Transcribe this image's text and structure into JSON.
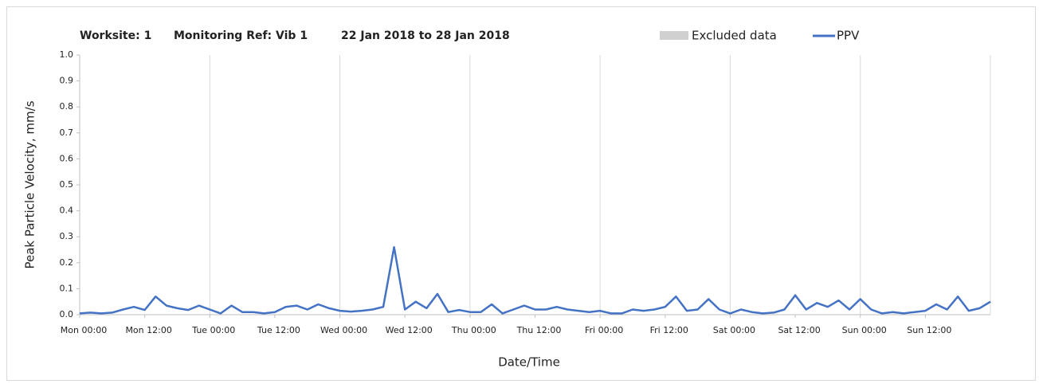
{
  "chart_data": {
    "type": "line",
    "title": [
      "Worksite: 1",
      "Monitoring Ref: Vib 1",
      "22 Jan 2018 to 28 Jan 2018"
    ],
    "xlabel": "Date/Time",
    "ylabel": "Peak Particle Velocity, mm/s",
    "legend": [
      {
        "name": "Excluded data",
        "color": "#d0d0d0"
      }
    ],
    "grid": true,
    "xlim": [
      0,
      168
    ],
    "xticks": [
      {
        "value": 0,
        "label": "Mon 00:00"
      },
      {
        "value": 12,
        "label": "Mon 12:00"
      },
      {
        "value": 24,
        "label": "Tue 00:00"
      },
      {
        "value": 36,
        "label": "Tue 12:00"
      },
      {
        "value": 48,
        "label": "Wed 00:00"
      },
      {
        "value": 60,
        "label": "Wed 12:00"
      },
      {
        "value": 72,
        "label": "Thu 00:00"
      },
      {
        "value": 84,
        "label": "Thu 12:00"
      },
      {
        "value": 96,
        "label": "Fri 00:00"
      },
      {
        "value": 108,
        "label": "Fri 12:00"
      },
      {
        "value": 120,
        "label": "Sat 00:00"
      },
      {
        "value": 132,
        "label": "Sat 12:00"
      },
      {
        "value": 144,
        "label": "Sun 00:00"
      },
      {
        "value": 156,
        "label": "Sun 12:00"
      }
    ],
    "ylim": [
      0,
      1
    ],
    "yticks": [
      {
        "value": 0,
        "label": "0.0"
      },
      0.1,
      0.2,
      0.3,
      0.4,
      0.5,
      0.6,
      0.7,
      0.8,
      0.9,
      {
        "value": 1,
        "label": "1.0"
      }
    ],
    "x": [
      0,
      2,
      4,
      6,
      8,
      10,
      12,
      14,
      16,
      18,
      20,
      22,
      24,
      26,
      28,
      30,
      32,
      34,
      36,
      38,
      40,
      42,
      44,
      46,
      48,
      50,
      52,
      54,
      56,
      58,
      60,
      62,
      64,
      66,
      68,
      70,
      72,
      74,
      76,
      78,
      80,
      82,
      84,
      86,
      88,
      90,
      92,
      94,
      96,
      98,
      100,
      102,
      104,
      106,
      108,
      110,
      112,
      114,
      116,
      118,
      120,
      122,
      124,
      126,
      128,
      130,
      132,
      134,
      136,
      138,
      140,
      142,
      144,
      146,
      148,
      150,
      152,
      154,
      156,
      158,
      160,
      162,
      164,
      166,
      168
    ],
    "series": [
      {
        "name": "PPV",
        "color": "#4472c4",
        "values": [
          0.005,
          0.008,
          0.005,
          0.008,
          0.02,
          0.03,
          0.018,
          0.07,
          0.035,
          0.025,
          0.018,
          0.035,
          0.02,
          0.005,
          0.035,
          0.01,
          0.01,
          0.005,
          0.01,
          0.03,
          0.035,
          0.02,
          0.04,
          0.025,
          0.015,
          0.012,
          0.015,
          0.02,
          0.03,
          0.26,
          0.02,
          0.05,
          0.025,
          0.08,
          0.01,
          0.018,
          0.01,
          0.01,
          0.04,
          0.005,
          0.02,
          0.035,
          0.02,
          0.02,
          0.03,
          0.02,
          0.015,
          0.01,
          0.015,
          0.005,
          0.005,
          0.02,
          0.015,
          0.02,
          0.03,
          0.07,
          0.015,
          0.02,
          0.06,
          0.02,
          0.005,
          0.02,
          0.01,
          0.005,
          0.008,
          0.02,
          0.075,
          0.02,
          0.045,
          0.03,
          0.055,
          0.02,
          0.06,
          0.02,
          0.005,
          0.01,
          0.005,
          0.01,
          0.015,
          0.04,
          0.02,
          0.07,
          0.015,
          0.025,
          0.05
        ]
      }
    ]
  }
}
